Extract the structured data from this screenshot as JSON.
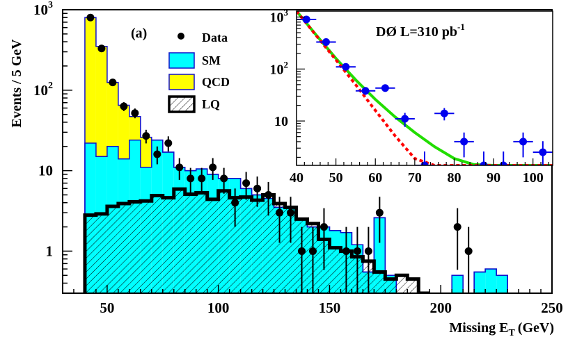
{
  "chart_data": [
    {
      "type": "histogram",
      "scale_y": "log",
      "panel_label": "(a)",
      "xlabel": "Missing E",
      "xlabel_sub": "T",
      "xlabel_unit": "(GeV)",
      "ylabel": "Events / 5 GeV",
      "xlim": [
        30,
        250
      ],
      "ylim": [
        0.3,
        1000
      ],
      "x_ticks": [
        50,
        100,
        150,
        200,
        250
      ],
      "y_ticks": [
        {
          "value": 1000,
          "label": "10",
          "sup": "3"
        },
        {
          "value": 100,
          "label": "10",
          "sup": "2"
        },
        {
          "value": 10,
          "label": "10",
          "sup": ""
        },
        {
          "value": 1,
          "label": "1",
          "sup": ""
        }
      ],
      "legend": [
        {
          "name": "Data",
          "kind": "marker",
          "color": "#000000"
        },
        {
          "name": "SM",
          "kind": "fill",
          "color": "#00ffff"
        },
        {
          "name": "QCD",
          "kind": "fill",
          "color": "#ffff00"
        },
        {
          "name": "LQ",
          "kind": "hatch",
          "color": "#000000"
        }
      ],
      "legend_position": "top-center",
      "colors": {
        "sm": "#00ffff",
        "sm_edge": "#1010cc",
        "qcd": "#ffff00",
        "lq": "#000000"
      },
      "bin_edges": [
        40,
        45,
        50,
        55,
        60,
        65,
        70,
        75,
        80,
        85,
        90,
        95,
        100,
        105,
        110,
        115,
        120,
        125,
        130,
        135,
        140,
        145,
        150,
        155,
        160,
        165,
        170,
        175,
        180,
        185,
        190,
        195,
        200,
        205,
        210,
        215,
        220,
        225,
        230,
        235,
        240,
        245,
        250
      ],
      "total_bkg": [
        800,
        350,
        125,
        65,
        47,
        26,
        24,
        17,
        11,
        10,
        10.5,
        9,
        8,
        8,
        6,
        5,
        4.5,
        3.5,
        3.4,
        2.5,
        2,
        2,
        1.8,
        1.7,
        1.2,
        0.55,
        2.6,
        0.5,
        0,
        0,
        0,
        0,
        0,
        0.5,
        0,
        0.55,
        0.6,
        0.5,
        0,
        0,
        0,
        0
      ],
      "sm": [
        22,
        15,
        20,
        14,
        24,
        11,
        24,
        17,
        11,
        10,
        10.5,
        9,
        8,
        8,
        6,
        5,
        4.5,
        3.5,
        3.4,
        2.5,
        2,
        2,
        1.8,
        1.7,
        1.2,
        0.55,
        2.6,
        0.5,
        0,
        0,
        0,
        0,
        0,
        0.5,
        0,
        0.55,
        0.6,
        0.5,
        0,
        0,
        0,
        0
      ],
      "lq": [
        2.8,
        2.9,
        3.6,
        3.9,
        4.1,
        4.2,
        4.9,
        4.6,
        5.9,
        5.1,
        5.3,
        4.4,
        5.6,
        4.6,
        4.7,
        4.3,
        5.0,
        3.9,
        3.5,
        2.5,
        2.2,
        1.4,
        1.1,
        1.0,
        0.85,
        0.75,
        0.55,
        0.45,
        0.5,
        0.45,
        0.3,
        0,
        0,
        0,
        0,
        0,
        0,
        0,
        0,
        0,
        0,
        0
      ],
      "data_points": [
        {
          "x": 42.5,
          "y": 800
        },
        {
          "x": 47.5,
          "y": 330
        },
        {
          "x": 52.5,
          "y": 125
        },
        {
          "x": 57.5,
          "y": 63
        },
        {
          "x": 62.5,
          "y": 52
        },
        {
          "x": 67.5,
          "y": 27
        },
        {
          "x": 72.5,
          "y": 16
        },
        {
          "x": 77.5,
          "y": 22
        },
        {
          "x": 82.5,
          "y": 11
        },
        {
          "x": 87.5,
          "y": 8
        },
        {
          "x": 92.5,
          "y": 8
        },
        {
          "x": 97.5,
          "y": 11
        },
        {
          "x": 102.5,
          "y": 8
        },
        {
          "x": 107.5,
          "y": 4
        },
        {
          "x": 112.5,
          "y": 7
        },
        {
          "x": 117.5,
          "y": 6
        },
        {
          "x": 122.5,
          "y": 5
        },
        {
          "x": 127.5,
          "y": 3
        },
        {
          "x": 132.5,
          "y": 3
        },
        {
          "x": 137.5,
          "y": 1
        },
        {
          "x": 142.5,
          "y": 1
        },
        {
          "x": 147.5,
          "y": 2
        },
        {
          "x": 157.5,
          "y": 1
        },
        {
          "x": 162.5,
          "y": 1
        },
        {
          "x": 167.5,
          "y": 1
        },
        {
          "x": 172.5,
          "y": 3
        },
        {
          "x": 207.5,
          "y": 2
        },
        {
          "x": 212.5,
          "y": 1
        }
      ]
    },
    {
      "type": "line",
      "scale_y": "log",
      "title": "DØ  L=310 pb",
      "title_sup": "-1",
      "xlim": [
        40,
        105
      ],
      "ylim": [
        1.4,
        1300
      ],
      "x_ticks": [
        40,
        50,
        60,
        70,
        80,
        90,
        100
      ],
      "y_ticks": [
        {
          "value": 1000,
          "label": "10",
          "sup": "3"
        },
        {
          "value": 100,
          "label": "10",
          "sup": "2"
        },
        {
          "value": 10,
          "label": "10",
          "sup": ""
        }
      ],
      "series": [
        {
          "kind": "fit",
          "color": "#22dd00",
          "x": [
            40,
            45,
            50,
            55,
            60,
            65,
            70,
            75,
            80,
            85,
            90,
            95,
            100,
            105
          ],
          "y": [
            1300,
            450,
            160,
            62,
            26,
            12,
            6,
            3.2,
            1.9,
            1.45,
            1.4,
            1.4,
            1.4,
            1.4
          ]
        },
        {
          "kind": "fit",
          "color": "#ff0000",
          "x": [
            40,
            45,
            50,
            55,
            60,
            65,
            70,
            75,
            80,
            85,
            90,
            95,
            100,
            105
          ],
          "y": [
            1300,
            440,
            150,
            50,
            16,
            5.2,
            1.9,
            1.4,
            1.4,
            1.4,
            1.4,
            1.4,
            1.4,
            1.4
          ]
        }
      ],
      "points": [
        {
          "x": 42.5,
          "y": 900
        },
        {
          "x": 47.5,
          "y": 330
        },
        {
          "x": 52.5,
          "y": 110
        },
        {
          "x": 57.5,
          "y": 38
        },
        {
          "x": 62.5,
          "y": 43
        },
        {
          "x": 67.5,
          "y": 11
        },
        {
          "x": 72.5,
          "y": 1.4
        },
        {
          "x": 77.5,
          "y": 14
        },
        {
          "x": 82.5,
          "y": 4
        },
        {
          "x": 87.5,
          "y": 1.4
        },
        {
          "x": 92.5,
          "y": 1.4
        },
        {
          "x": 97.5,
          "y": 4
        },
        {
          "x": 102.5,
          "y": 2.5
        }
      ]
    }
  ]
}
